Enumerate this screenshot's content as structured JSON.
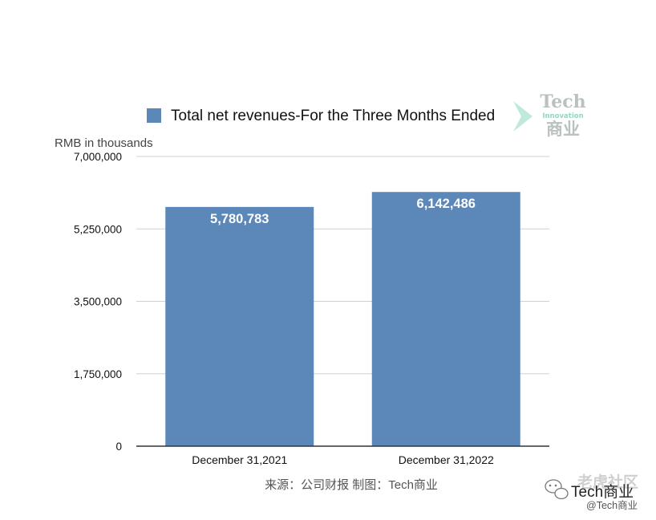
{
  "chart_data": {
    "type": "bar",
    "title": "",
    "legend": [
      "Total net revenues-For the Three Months Ended"
    ],
    "legend_position": "top",
    "ylabel": "RMB in thousands",
    "xlabel": "",
    "categories": [
      "December 31,2021",
      "December 31,2022"
    ],
    "series": [
      {
        "name": "Total net revenues-For the Three Months Ended",
        "values": [
          5780783,
          6142486
        ]
      }
    ],
    "data_labels": [
      "5,780,783",
      "6,142,486"
    ],
    "ylim": [
      0,
      7000000
    ],
    "yticks": [
      0,
      1750000,
      3500000,
      5250000,
      7000000
    ],
    "ytick_labels": [
      "0",
      "1,750,000",
      "3,500,000",
      "5,250,000",
      "7,000,000"
    ],
    "grid": true,
    "colors": {
      "bar": "#5b87b9",
      "grid": "#d0d0d0",
      "axis": "#333333"
    }
  },
  "source_note": "来源：公司财报  制图：Tech商业",
  "watermark": {
    "line1": "Tech",
    "line2": "Innovation",
    "line3": "商业"
  },
  "corner_badge": {
    "cn": "老虎社区",
    "main": "Tech商业",
    "sub": "@Tech商业"
  }
}
